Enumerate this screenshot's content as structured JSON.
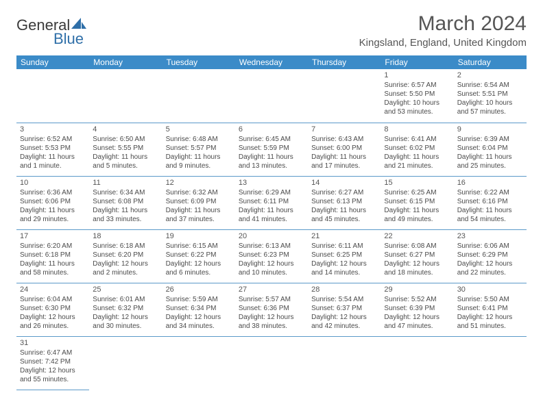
{
  "brand": {
    "part1": "General",
    "part2": "Blue"
  },
  "title": "March 2024",
  "location": "Kingsland, England, United Kingdom",
  "colors": {
    "header_bg": "#3b8bc8",
    "header_text": "#ffffff",
    "row_border": "#5a99c9",
    "body_text": "#4a4a4a",
    "page_bg": "#ffffff"
  },
  "weekdays": [
    "Sunday",
    "Monday",
    "Tuesday",
    "Wednesday",
    "Thursday",
    "Friday",
    "Saturday"
  ],
  "weeks": [
    [
      null,
      null,
      null,
      null,
      null,
      {
        "n": "1",
        "sr": "Sunrise: 6:57 AM",
        "ss": "Sunset: 5:50 PM",
        "d1": "Daylight: 10 hours",
        "d2": "and 53 minutes."
      },
      {
        "n": "2",
        "sr": "Sunrise: 6:54 AM",
        "ss": "Sunset: 5:51 PM",
        "d1": "Daylight: 10 hours",
        "d2": "and 57 minutes."
      }
    ],
    [
      {
        "n": "3",
        "sr": "Sunrise: 6:52 AM",
        "ss": "Sunset: 5:53 PM",
        "d1": "Daylight: 11 hours",
        "d2": "and 1 minute."
      },
      {
        "n": "4",
        "sr": "Sunrise: 6:50 AM",
        "ss": "Sunset: 5:55 PM",
        "d1": "Daylight: 11 hours",
        "d2": "and 5 minutes."
      },
      {
        "n": "5",
        "sr": "Sunrise: 6:48 AM",
        "ss": "Sunset: 5:57 PM",
        "d1": "Daylight: 11 hours",
        "d2": "and 9 minutes."
      },
      {
        "n": "6",
        "sr": "Sunrise: 6:45 AM",
        "ss": "Sunset: 5:59 PM",
        "d1": "Daylight: 11 hours",
        "d2": "and 13 minutes."
      },
      {
        "n": "7",
        "sr": "Sunrise: 6:43 AM",
        "ss": "Sunset: 6:00 PM",
        "d1": "Daylight: 11 hours",
        "d2": "and 17 minutes."
      },
      {
        "n": "8",
        "sr": "Sunrise: 6:41 AM",
        "ss": "Sunset: 6:02 PM",
        "d1": "Daylight: 11 hours",
        "d2": "and 21 minutes."
      },
      {
        "n": "9",
        "sr": "Sunrise: 6:39 AM",
        "ss": "Sunset: 6:04 PM",
        "d1": "Daylight: 11 hours",
        "d2": "and 25 minutes."
      }
    ],
    [
      {
        "n": "10",
        "sr": "Sunrise: 6:36 AM",
        "ss": "Sunset: 6:06 PM",
        "d1": "Daylight: 11 hours",
        "d2": "and 29 minutes."
      },
      {
        "n": "11",
        "sr": "Sunrise: 6:34 AM",
        "ss": "Sunset: 6:08 PM",
        "d1": "Daylight: 11 hours",
        "d2": "and 33 minutes."
      },
      {
        "n": "12",
        "sr": "Sunrise: 6:32 AM",
        "ss": "Sunset: 6:09 PM",
        "d1": "Daylight: 11 hours",
        "d2": "and 37 minutes."
      },
      {
        "n": "13",
        "sr": "Sunrise: 6:29 AM",
        "ss": "Sunset: 6:11 PM",
        "d1": "Daylight: 11 hours",
        "d2": "and 41 minutes."
      },
      {
        "n": "14",
        "sr": "Sunrise: 6:27 AM",
        "ss": "Sunset: 6:13 PM",
        "d1": "Daylight: 11 hours",
        "d2": "and 45 minutes."
      },
      {
        "n": "15",
        "sr": "Sunrise: 6:25 AM",
        "ss": "Sunset: 6:15 PM",
        "d1": "Daylight: 11 hours",
        "d2": "and 49 minutes."
      },
      {
        "n": "16",
        "sr": "Sunrise: 6:22 AM",
        "ss": "Sunset: 6:16 PM",
        "d1": "Daylight: 11 hours",
        "d2": "and 54 minutes."
      }
    ],
    [
      {
        "n": "17",
        "sr": "Sunrise: 6:20 AM",
        "ss": "Sunset: 6:18 PM",
        "d1": "Daylight: 11 hours",
        "d2": "and 58 minutes."
      },
      {
        "n": "18",
        "sr": "Sunrise: 6:18 AM",
        "ss": "Sunset: 6:20 PM",
        "d1": "Daylight: 12 hours",
        "d2": "and 2 minutes."
      },
      {
        "n": "19",
        "sr": "Sunrise: 6:15 AM",
        "ss": "Sunset: 6:22 PM",
        "d1": "Daylight: 12 hours",
        "d2": "and 6 minutes."
      },
      {
        "n": "20",
        "sr": "Sunrise: 6:13 AM",
        "ss": "Sunset: 6:23 PM",
        "d1": "Daylight: 12 hours",
        "d2": "and 10 minutes."
      },
      {
        "n": "21",
        "sr": "Sunrise: 6:11 AM",
        "ss": "Sunset: 6:25 PM",
        "d1": "Daylight: 12 hours",
        "d2": "and 14 minutes."
      },
      {
        "n": "22",
        "sr": "Sunrise: 6:08 AM",
        "ss": "Sunset: 6:27 PM",
        "d1": "Daylight: 12 hours",
        "d2": "and 18 minutes."
      },
      {
        "n": "23",
        "sr": "Sunrise: 6:06 AM",
        "ss": "Sunset: 6:29 PM",
        "d1": "Daylight: 12 hours",
        "d2": "and 22 minutes."
      }
    ],
    [
      {
        "n": "24",
        "sr": "Sunrise: 6:04 AM",
        "ss": "Sunset: 6:30 PM",
        "d1": "Daylight: 12 hours",
        "d2": "and 26 minutes."
      },
      {
        "n": "25",
        "sr": "Sunrise: 6:01 AM",
        "ss": "Sunset: 6:32 PM",
        "d1": "Daylight: 12 hours",
        "d2": "and 30 minutes."
      },
      {
        "n": "26",
        "sr": "Sunrise: 5:59 AM",
        "ss": "Sunset: 6:34 PM",
        "d1": "Daylight: 12 hours",
        "d2": "and 34 minutes."
      },
      {
        "n": "27",
        "sr": "Sunrise: 5:57 AM",
        "ss": "Sunset: 6:36 PM",
        "d1": "Daylight: 12 hours",
        "d2": "and 38 minutes."
      },
      {
        "n": "28",
        "sr": "Sunrise: 5:54 AM",
        "ss": "Sunset: 6:37 PM",
        "d1": "Daylight: 12 hours",
        "d2": "and 42 minutes."
      },
      {
        "n": "29",
        "sr": "Sunrise: 5:52 AM",
        "ss": "Sunset: 6:39 PM",
        "d1": "Daylight: 12 hours",
        "d2": "and 47 minutes."
      },
      {
        "n": "30",
        "sr": "Sunrise: 5:50 AM",
        "ss": "Sunset: 6:41 PM",
        "d1": "Daylight: 12 hours",
        "d2": "and 51 minutes."
      }
    ],
    [
      {
        "n": "31",
        "sr": "Sunrise: 6:47 AM",
        "ss": "Sunset: 7:42 PM",
        "d1": "Daylight: 12 hours",
        "d2": "and 55 minutes."
      },
      null,
      null,
      null,
      null,
      null,
      null
    ]
  ]
}
